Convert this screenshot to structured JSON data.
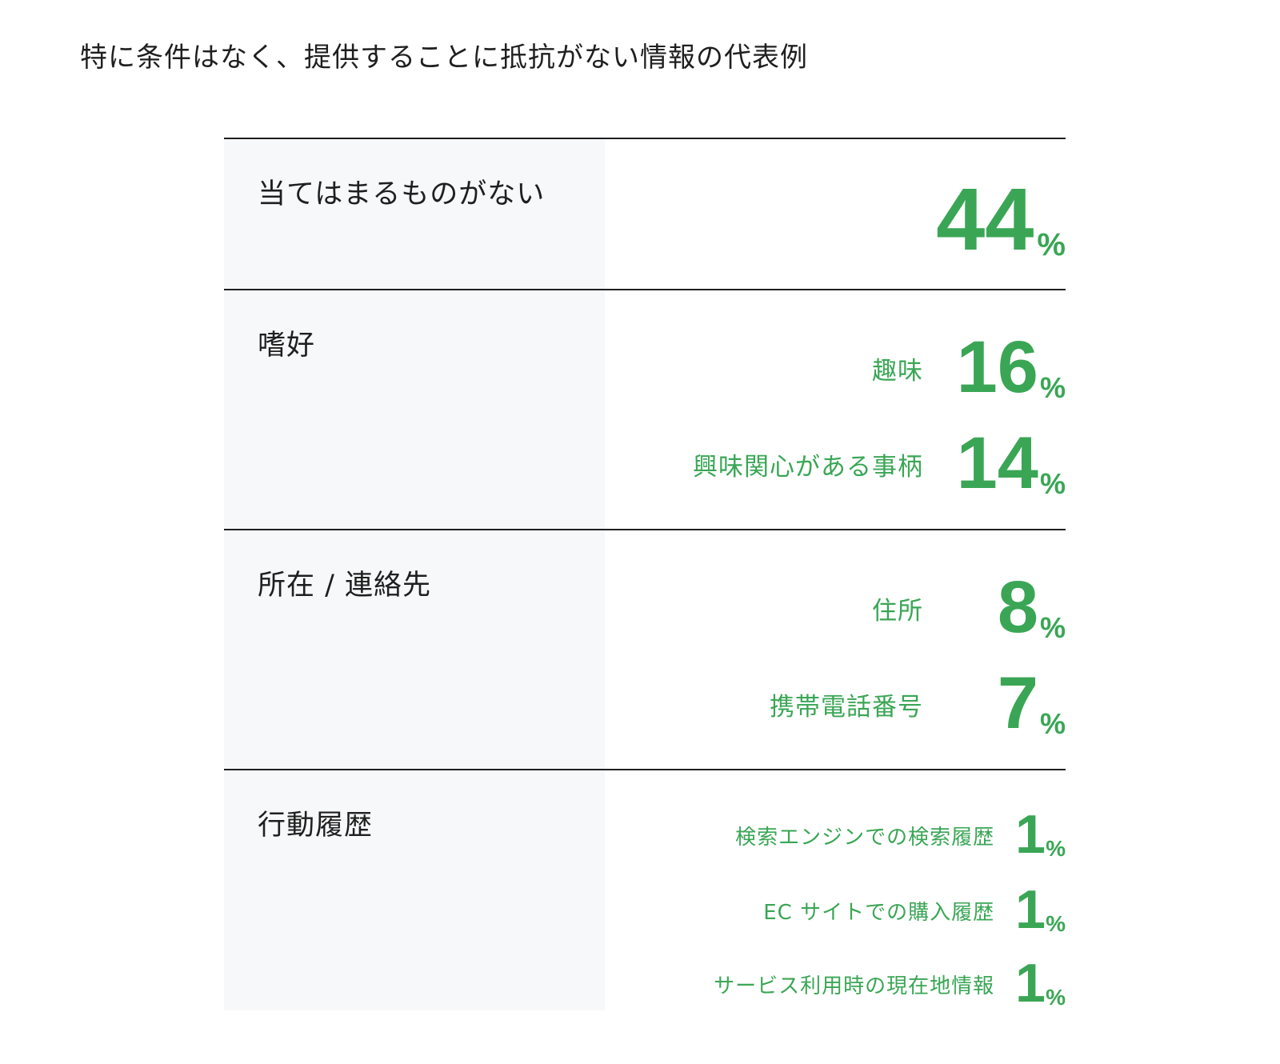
{
  "title": "特に条件はなく、提供することに抵抗がない情報の代表例",
  "colors": {
    "accent": "#3aa655",
    "rule": "#1f1f1f",
    "category_bg": "#f7f8fa"
  },
  "chart_data": {
    "type": "table",
    "unit": "%",
    "groups": [
      {
        "category": "当てはまるものがない",
        "items": [
          {
            "label": "",
            "value": 44
          }
        ]
      },
      {
        "category": "嗜好",
        "items": [
          {
            "label": "趣味",
            "value": 16
          },
          {
            "label": "興味関心がある事柄",
            "value": 14
          }
        ]
      },
      {
        "category": "所在 / 連絡先",
        "items": [
          {
            "label": "住所",
            "value": 8
          },
          {
            "label": "携帯電話番号",
            "value": 7
          }
        ]
      },
      {
        "category": "行動履歴",
        "items": [
          {
            "label": "検索エンジンでの検索履歴",
            "value": 1
          },
          {
            "label": "EC サイトでの購入履歴",
            "value": 1
          },
          {
            "label": "サービス利用時の現在地情報",
            "value": 1
          }
        ]
      }
    ]
  }
}
